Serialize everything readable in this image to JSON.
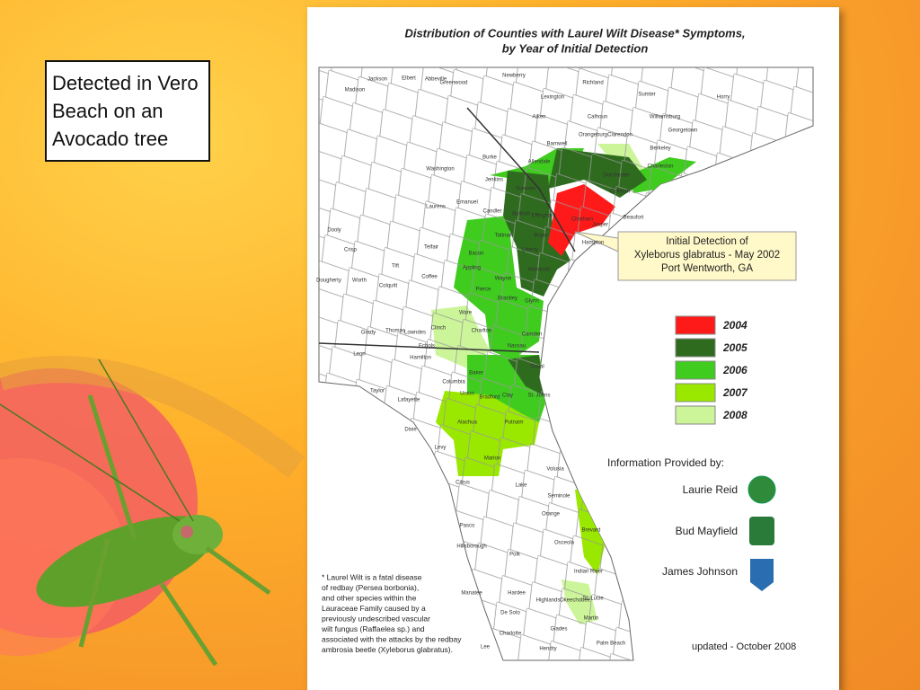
{
  "callout": "Detected in Vero Beach on an Avocado tree",
  "map": {
    "title": [
      "Distribution of Counties with Laurel Wilt Disease* Symptoms,",
      "by Year of Initial Detection"
    ],
    "initial_detection": [
      "Initial Detection of",
      "Xyleborus glabratus - May 2002",
      "Port Wentworth, GA"
    ],
    "legend": [
      {
        "label": "2004",
        "color": "#ff1a1a"
      },
      {
        "label": "2005",
        "color": "#2f6b1f"
      },
      {
        "label": "2006",
        "color": "#3fcc1f"
      },
      {
        "label": "2007",
        "color": "#9ae800"
      },
      {
        "label": "2008",
        "color": "#ccf59a"
      }
    ],
    "credits_heading": "Information Provided by:",
    "credits": [
      "Laurie Reid",
      "Bud Mayfield",
      "James Johnson"
    ],
    "footnote": [
      "* Laurel Wilt is a fatal disease",
      "of redbay (Persea borbonia),",
      "and other species within the",
      "Lauraceae Family caused by a",
      "previously undescribed vascular",
      "wilt fungus (Raffaelea sp.) and",
      "associated with the attacks by the redbay",
      "ambrosia beetle (Xyleborus glabratus)."
    ],
    "updated": "updated - October 2008",
    "counties": [
      "Jackson",
      "Madison",
      "Elbert",
      "Abbeville",
      "Greenwood",
      "Newberry",
      "Lexington",
      "Richland",
      "Sumter",
      "Orangeburg",
      "Berkeley",
      "Charleston",
      "Dorchester",
      "Colleton",
      "Beaufort",
      "Jasper",
      "Hampton",
      "Burke",
      "Screven",
      "Jenkins",
      "Bulloch",
      "Effingham",
      "Chatham",
      "Bryan",
      "Liberty",
      "McIntosh",
      "Glynn",
      "Camden",
      "Wayne",
      "Brantley",
      "Charlton",
      "Ware",
      "Pierce",
      "Appling",
      "Tattnall",
      "Candler",
      "Nassau",
      "Duval",
      "Baker",
      "Clay",
      "St. Johns",
      "Putnam",
      "Alachua",
      "Marion",
      "Columbia",
      "Union",
      "Bradford",
      "Volusia",
      "Lake",
      "Orange",
      "Seminole",
      "Brevard",
      "Osceola",
      "Polk",
      "Indian River",
      "St. Lucie",
      "Martin",
      "Okeechobee",
      "Highlands",
      "Hardee",
      "De Soto",
      "Glades",
      "Charlotte",
      "Lee",
      "Hendry",
      "Palm Beach",
      "Manatee",
      "Hillsborough",
      "Pasco",
      "Citrus",
      "Levy",
      "Dixie",
      "Hamilton",
      "Taylor",
      "Lafayette",
      "Leon",
      "Clinch",
      "Coffee",
      "Colquitt",
      "Dougherty",
      "Worth",
      "Crisp",
      "Dooly",
      "Laurens",
      "Washington",
      "Emanuel",
      "Telfair",
      "Aiken",
      "Barnwell",
      "Allendale",
      "Calhoun",
      "Clarendon",
      "Williamsburg",
      "Georgetown",
      "Horry",
      "Lowndes",
      "Echols",
      "Bacon",
      "Tift",
      "Thomas",
      "Grady"
    ]
  }
}
